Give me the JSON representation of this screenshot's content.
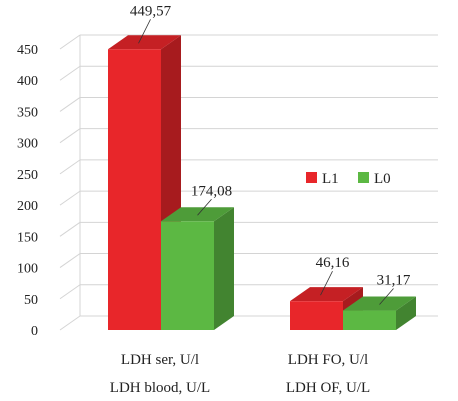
{
  "chart_data": {
    "type": "bar",
    "categories": [
      "LDH ser, U/l",
      "LDH FO, U/l"
    ],
    "category_sublabels": [
      "LDH blood, U/L",
      "LDH OF, U/L"
    ],
    "series": [
      {
        "name": "L1",
        "values": [
          449.57,
          46.16
        ],
        "labels": [
          "449,57",
          "46,16"
        ],
        "color": "#e8262a"
      },
      {
        "name": "L0",
        "values": [
          174.08,
          31.17
        ],
        "labels": [
          "174,08",
          "31,17"
        ],
        "color": "#5cb843"
      }
    ],
    "yticks": [
      "0",
      "50",
      "100",
      "150",
      "200",
      "250",
      "300",
      "350",
      "400",
      "450"
    ],
    "ylim": [
      0,
      450
    ],
    "grid": true,
    "legend": "right",
    "style": "3d"
  }
}
